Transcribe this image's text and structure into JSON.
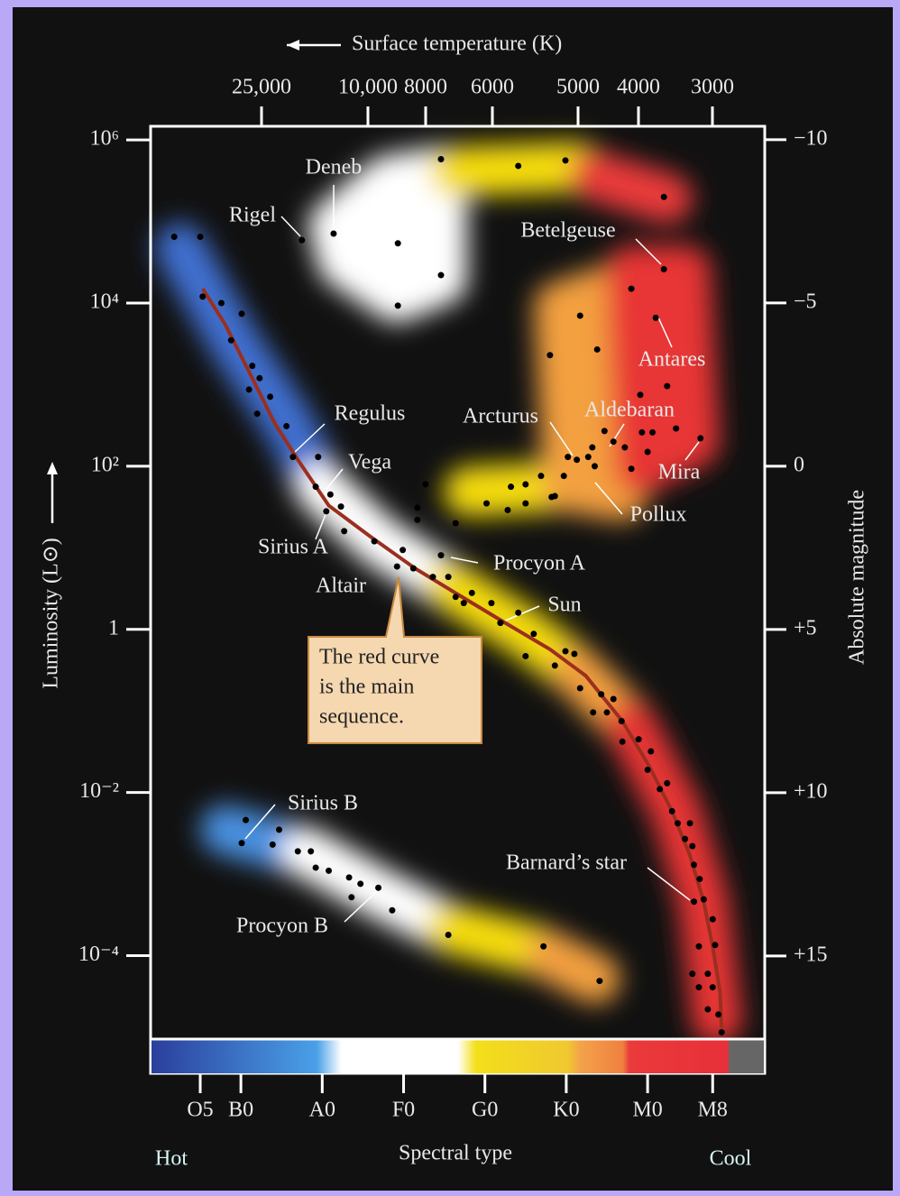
{
  "chart_data": {
    "type": "scatter",
    "x_label": "Spectral type",
    "x2_label": "Surface temperature (K)",
    "y_label": "Luminosity (L⊙)",
    "y2_label": "Absolute magnitude",
    "hot_label": "Hot",
    "cool_label": "Cool",
    "callout": [
      "The red curve",
      "is the main",
      "sequence."
    ],
    "star_labels": [
      "Deneb",
      "Rigel",
      "Betelgeuse",
      "Antares",
      "Regulus",
      "Arcturus",
      "Aldebaran",
      "Vega",
      "Mira",
      "Pollux",
      "Sirius A",
      "Procyon A",
      "Altair",
      "Sun",
      "Sirius B",
      "Barnard’s star",
      "Procyon B"
    ],
    "xlim": [
      -1.1,
      74.4
    ],
    "xticks": [
      {
        "value": 5,
        "label": "O5"
      },
      {
        "value": 10,
        "label": "B0"
      },
      {
        "value": 20,
        "label": "A0"
      },
      {
        "value": 30,
        "label": "F0"
      },
      {
        "value": 40,
        "label": "G0"
      },
      {
        "value": 50,
        "label": "K0"
      },
      {
        "value": 60,
        "label": "M0"
      },
      {
        "value": 68,
        "label": "M8"
      }
    ],
    "x2ticks": [
      {
        "value": 25000,
        "label": "25,000"
      },
      {
        "value": 10000,
        "label": "10,000"
      },
      8000,
      6000,
      5000,
      4000,
      3000
    ],
    "log_y": true,
    "ylim": [
      1e-05,
      1470000
    ],
    "yticks": [
      {
        "value": 1000000,
        "label": "10⁶"
      },
      {
        "value": 10000,
        "label": "10⁴"
      },
      {
        "value": 100,
        "label": "10²"
      },
      1,
      {
        "value": 0.01,
        "label": "10⁻²"
      },
      {
        "value": 0.0001,
        "label": "10⁻⁴"
      }
    ],
    "y2lim": [
      -10.41,
      17.49
    ],
    "y2ticks": [
      {
        "value": -10,
        "label": "−10"
      },
      {
        "value": -5,
        "label": "−5"
      },
      0,
      {
        "value": 5,
        "label": "+5"
      },
      {
        "value": 10,
        "label": "+10"
      },
      {
        "value": 15,
        "label": "+15"
      }
    ],
    "series": [
      {
        "type": "scatter",
        "color": "#000000",
        "x": [
          1.8,
          5.0,
          17.5,
          21.4,
          29.3,
          34.6,
          34.6,
          29.3,
          44.1,
          49.9,
          62.0,
          62.0,
          58.0,
          61.0,
          51.7,
          48.0,
          53.8,
          62.4,
          59.1,
          53.2,
          54.7,
          52.7,
          51.3,
          53.5,
          50.2,
          55.8,
          57.2,
          59.3,
          60.6,
          63.5,
          66.5,
          60.0,
          58.0,
          48.6,
          46.9,
          45.0,
          45.0,
          43.2,
          40.2,
          42.8,
          48.2,
          49.7,
          36.4,
          32.7,
          31.7,
          31.7,
          5.3,
          7.6,
          10.1,
          8.8,
          11.4,
          12.3,
          11.0,
          13.6,
          12.0,
          15.6,
          16.4,
          19.5,
          19.2,
          21.0,
          22.3,
          20.5,
          22.7,
          26.4,
          29.2,
          29.9,
          31.2,
          33.6,
          34.6,
          35.5,
          36.4,
          38.4,
          37.4,
          40.8,
          41.9,
          44.1,
          46.0,
          45.0,
          48.6,
          49.9,
          51.0,
          51.7,
          54.3,
          55.8,
          53.3,
          55.0,
          56.8,
          56.9,
          58.9,
          60.0,
          60.4,
          61.5,
          62.4,
          63.0,
          63.7,
          65.2,
          64.6,
          65.5,
          65.7,
          66.4,
          66.9,
          65.7,
          68.0,
          68.3,
          66.3,
          67.4,
          65.5,
          66.3,
          68.0,
          67.4,
          68.7,
          69.1,
          10.6,
          10.1,
          14.7,
          13.9,
          17.0,
          18.6,
          19.2,
          20.8,
          23.3,
          24.7,
          23.6,
          26.9,
          28.6,
          35.5,
          47.2,
          54.1
        ],
        "values": [
          65000,
          65000,
          59000,
          71000,
          54000,
          580000,
          22000,
          9300,
          480000,
          560000,
          200000,
          26000,
          15000,
          6600,
          7000,
          2300,
          2700,
          960,
          750,
          170,
          270,
          130,
          120,
          100,
          130,
          200,
          170,
          260,
          260,
          290,
          220,
          150,
          93,
          43,
          76,
          60,
          35,
          56,
          35,
          29,
          42,
          76,
          20,
          60,
          31,
          22,
          12000,
          10000,
          7400,
          3500,
          1700,
          1200,
          870,
          710,
          440,
          310,
          130,
          130,
          56,
          45,
          32,
          28,
          16,
          12,
          5.9,
          9.4,
          5.6,
          4.4,
          8.1,
          4.4,
          2.5,
          2.8,
          2.1,
          2.1,
          1.2,
          1.6,
          0.88,
          0.47,
          0.36,
          0.54,
          0.5,
          0.19,
          0.16,
          0.14,
          0.096,
          0.096,
          0.075,
          0.042,
          0.045,
          0.019,
          0.032,
          0.011,
          0.013,
          0.0059,
          0.0042,
          0.0042,
          0.0027,
          0.0022,
          0.0013,
          0.00087,
          0.00049,
          0.00046,
          0.00028,
          0.000135,
          0.00013,
          6e-05,
          6e-05,
          4.1e-05,
          4.1e-05,
          2.2e-05,
          1.9e-05,
          1.15e-05,
          0.0046,
          0.0024,
          0.0035,
          0.0023,
          0.0019,
          0.0019,
          0.0012,
          0.0011,
          0.00091,
          0.00076,
          0.00052,
          0.00068,
          0.00036,
          0.00018,
          0.00013,
          4.9e-05
        ]
      },
      {
        "type": "line",
        "color": "#9b2f1f",
        "x": [
          5.3,
          8.1,
          11.4,
          14.2,
          17.0,
          20.8,
          25.8,
          31.4,
          36.9,
          42.5,
          48.0,
          52.4,
          56.9,
          60.2,
          63.0,
          65.2,
          66.9,
          68.0,
          68.9,
          69.1
        ],
        "values": [
          15000,
          5400,
          1200,
          330,
          120,
          33,
          14,
          5.6,
          2.6,
          1.2,
          0.57,
          0.27,
          0.075,
          0.021,
          0.0059,
          0.0017,
          0.00046,
          0.00013,
          3.6e-05,
          1.3e-05
        ]
      }
    ]
  }
}
